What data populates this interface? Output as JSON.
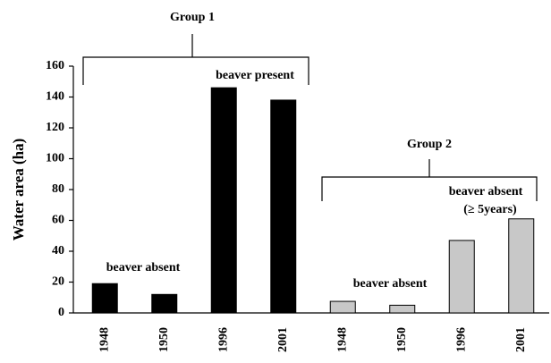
{
  "chart_data": {
    "type": "bar",
    "y_label": "Water area (ha)",
    "categories": [
      "1948",
      "1950",
      "1996",
      "2001",
      "1948",
      "1950",
      "1996",
      "2001"
    ],
    "values": [
      19,
      12,
      146,
      138,
      7.5,
      5,
      47,
      61
    ],
    "colors": [
      "#000000",
      "#000000",
      "#000000",
      "#000000",
      "#c8c8c8",
      "#c8c8c8",
      "#c8c8c8",
      "#c8c8c8"
    ],
    "ylim": [
      0,
      160
    ],
    "yticks": [
      0,
      20,
      40,
      60,
      80,
      100,
      120,
      140,
      160
    ],
    "annotations": [
      "Group 1",
      "beaver absent",
      "beaver present",
      "Group 2",
      "beaver absent",
      "beaver absent",
      "(≥ 5years)"
    ]
  }
}
